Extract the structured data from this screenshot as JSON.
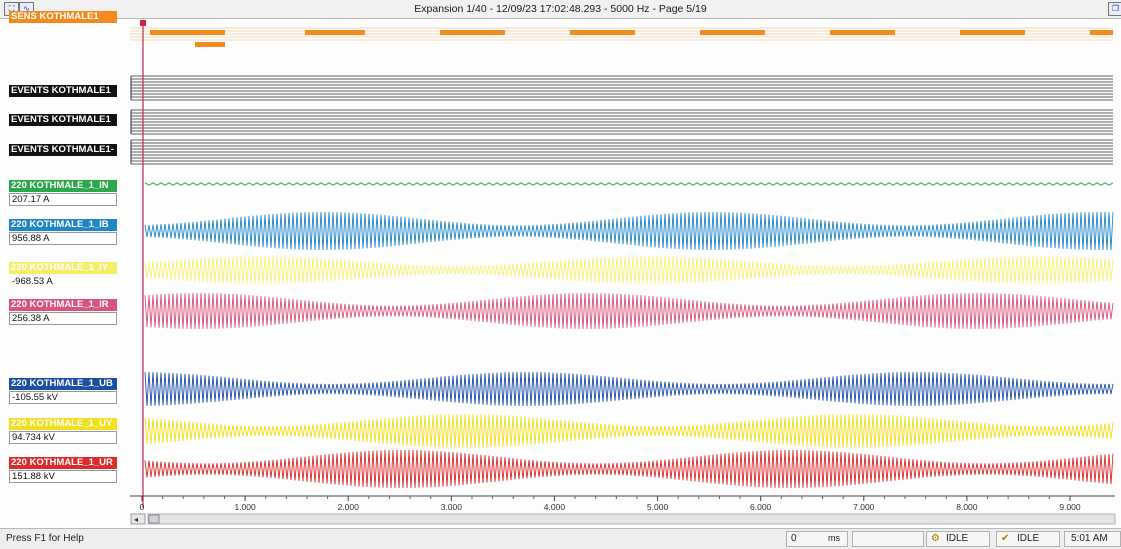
{
  "window": {
    "title": "Expansion 1/40 - 12/09/23 17:02:48.293 - 5000 Hz - Page 5/19",
    "toolbar_icons": [
      "zoom-icon",
      "waveform-icon"
    ]
  },
  "channels": [
    {
      "label": "SENS KOTHMALE1",
      "value": "",
      "color": "#f28a1d",
      "kind": "digital-orange"
    },
    {
      "label": "EVENTS KOTHMALE1",
      "value": "",
      "color": "#141414",
      "kind": "events"
    },
    {
      "label": "EVENTS KOTHMALE1",
      "value": "",
      "color": "#141414",
      "kind": "events"
    },
    {
      "label": "EVENTS KOTHMALE1-",
      "value": "",
      "color": "#141414",
      "kind": "events"
    },
    {
      "label": "220 KOTHMALE_1_IN",
      "value": "207.17 A",
      "color": "#2aa84a",
      "kind": "analog"
    },
    {
      "label": "220 KOTHMALE_1_IB",
      "value": "956.88 A",
      "color": "#1f86c8",
      "kind": "analog"
    },
    {
      "label": "220 KOTHMALE_1_IY",
      "value": "-968.53 A",
      "color": "#f5ee6a",
      "kind": "analog"
    },
    {
      "label": "220 KOTHMALE_1_IR",
      "value": "256.38 A",
      "color": "#d9537a",
      "kind": "analog"
    },
    {
      "label": "220 KOTHMALE_1_UB",
      "value": "-105.55 kV",
      "color": "#1d4fa6",
      "kind": "analog"
    },
    {
      "label": "220 KOTHMALE_1_UY",
      "value": "94.734 kV",
      "color": "#f0e020",
      "kind": "analog"
    },
    {
      "label": "220 KOTHMALE_1_UR",
      "value": "151.88 kV",
      "color": "#dc2b2b",
      "kind": "analog"
    }
  ],
  "time_axis": {
    "unit": "ms",
    "tick_labels": [
      "0",
      "1.000",
      "2.000",
      "3.000",
      "4.000",
      "5.000",
      "6.000",
      "7.000",
      "8.000",
      "9.000"
    ]
  },
  "status": {
    "help": "Press F1 for Help",
    "cursor_value": "0",
    "cursor_unit": "ms",
    "state1": "IDLE",
    "state2": "IDLE",
    "clock": "5:01 AM"
  }
}
